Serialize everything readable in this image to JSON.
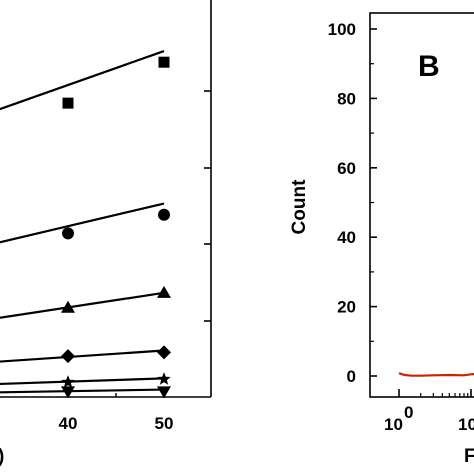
{
  "chart_data": [
    {
      "panel": "A",
      "type": "scatter",
      "xlabel_fragment": ")",
      "x_ticks": [
        "40",
        "50"
      ],
      "xlim_visible": [
        27,
        52
      ],
      "ylim_visible": [
        0,
        105
      ],
      "series": [
        {
          "marker": "square",
          "x": [
            40,
            50
          ],
          "y": [
            79,
            90
          ],
          "fit": {
            "x": [
              27,
              50
            ],
            "y": [
              72,
              93
            ]
          }
        },
        {
          "marker": "circle",
          "x": [
            40,
            50
          ],
          "y": [
            44,
            49
          ],
          "fit": {
            "x": [
              27,
              50
            ],
            "y": [
              38,
              52
            ]
          }
        },
        {
          "marker": "triangle",
          "x": [
            40,
            50
          ],
          "y": [
            24,
            28
          ],
          "fit": {
            "x": [
              27,
              50
            ],
            "y": [
              19,
              28
            ]
          }
        },
        {
          "marker": "diamond",
          "x": [
            40,
            50
          ],
          "y": [
            11,
            12
          ],
          "fit": {
            "x": [
              27,
              50
            ],
            "y": [
              8.5,
              12.5
            ]
          }
        },
        {
          "marker": "star",
          "x": [
            40,
            50
          ],
          "y": [
            4,
            4.8
          ],
          "fit": {
            "x": [
              27,
              50
            ],
            "y": [
              3,
              5
            ]
          }
        },
        {
          "marker": "triangle-down",
          "x": [
            40,
            50
          ],
          "y": [
            1.5,
            1.5
          ],
          "fit": {
            "x": [
              27,
              50
            ],
            "y": [
              1,
              2
            ]
          }
        }
      ]
    },
    {
      "panel": "B",
      "type": "line",
      "panel_label": "B",
      "ylabel": "Count",
      "xlabel_fragment": "F",
      "y_ticks": [
        0,
        20,
        40,
        60,
        80,
        100
      ],
      "ylim": [
        0,
        100
      ],
      "x_scale": "log",
      "x_tick_labels": [
        {
          "base": "10",
          "exp": "0"
        },
        {
          "base": "10",
          "exp": ""
        }
      ],
      "series": [
        {
          "color": "#cc2200",
          "x": [
            1,
            1.2,
            1.5,
            2,
            3,
            5,
            8,
            10,
            12,
            14
          ],
          "y": [
            0.8,
            0.3,
            0.1,
            0.1,
            0.2,
            0.3,
            0.2,
            0.5,
            0.6,
            0.4
          ]
        }
      ]
    }
  ]
}
